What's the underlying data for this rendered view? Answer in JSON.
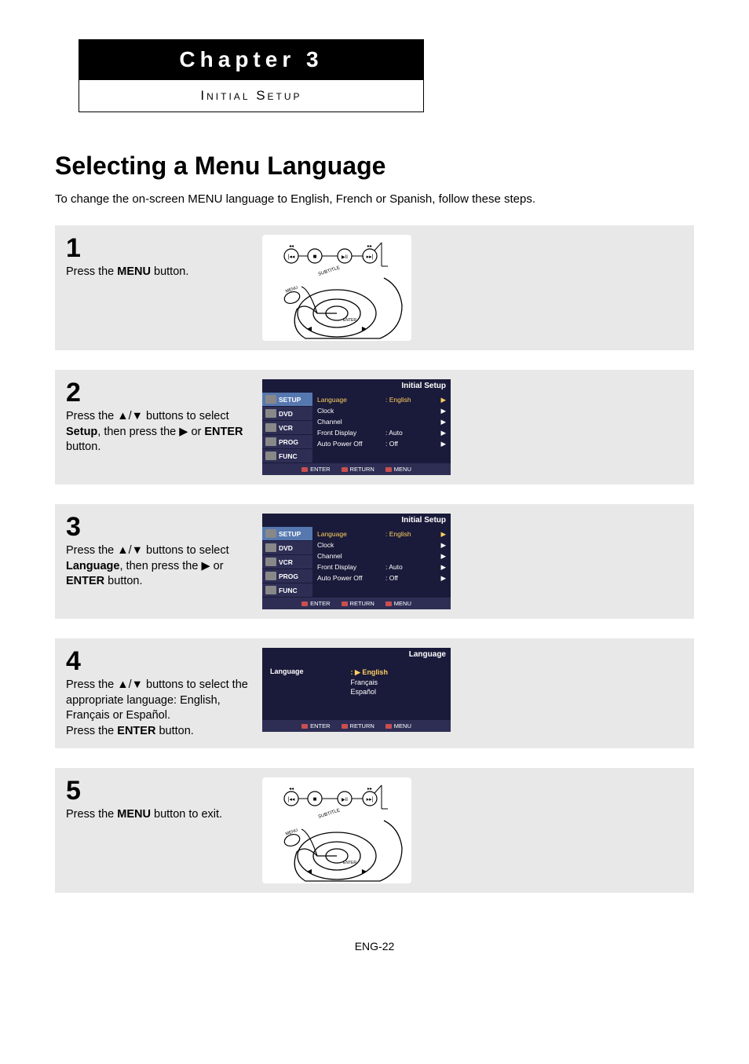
{
  "chapter": {
    "title": "Chapter 3",
    "subtitle": "Initial Setup"
  },
  "section_title": "Selecting a Menu Language",
  "intro": "To change the on-screen MENU language to English, French or Spanish, follow these steps.",
  "steps": [
    {
      "num": "1",
      "text_pre": "Press the ",
      "text_bold1": "MENU",
      "text_post": " button.",
      "image_type": "remote"
    },
    {
      "num": "2",
      "text_pre": "Press the ▲/▼ buttons to select ",
      "text_bold1": "Setup",
      "text_mid": ", then press the ▶ or ",
      "text_bold2": "ENTER",
      "text_post": " button.",
      "image_type": "osd_setup",
      "osd_highlight": "Language"
    },
    {
      "num": "3",
      "text_pre": "Press the ▲/▼ buttons to select ",
      "text_bold1": "Language",
      "text_mid": ", then press the ▶ or ",
      "text_bold2": "ENTER",
      "text_post": " button.",
      "image_type": "osd_setup",
      "osd_highlight": "Language"
    },
    {
      "num": "4",
      "text_pre": "Press the ▲/▼ buttons to select the appropriate language: English, Français or Español.\nPress the ",
      "text_bold1": "ENTER",
      "text_post": " button.",
      "image_type": "osd_lang"
    },
    {
      "num": "5",
      "text_pre": "Press the ",
      "text_bold1": "MENU",
      "text_post": " button to exit.",
      "image_type": "remote"
    }
  ],
  "osd": {
    "header_setup": "Initial Setup",
    "header_lang": "Language",
    "tabs": [
      "SETUP",
      "DVD",
      "VCR",
      "PROG",
      "FUNC"
    ],
    "rows": [
      {
        "k": "Language",
        "v": ": English",
        "a": "▶"
      },
      {
        "k": "Clock",
        "v": "",
        "a": "▶"
      },
      {
        "k": "Channel",
        "v": "",
        "a": "▶"
      },
      {
        "k": "Front Display",
        "v": ": Auto",
        "a": "▶"
      },
      {
        "k": "Auto Power Off",
        "v": ": Off",
        "a": "▶"
      }
    ],
    "lang_label": "Language",
    "lang_sel_prefix": ": ▶",
    "lang_options": [
      "English",
      "Français",
      "Español"
    ],
    "footer": [
      "ENTER",
      "RETURN",
      "MENU"
    ]
  },
  "remote": {
    "prev_label": "◂◂",
    "prev_icon": "⦮",
    "stop_icon": "■",
    "play_icon": "▶⏸",
    "next_icon": "⦯",
    "next_label": "▸▸",
    "subtitle_label": "SUBTITLE",
    "menu_label": "MENU",
    "enter_label": "ENTER",
    "nav_left": "◀",
    "nav_right": "▶"
  },
  "page_num": "ENG-22",
  "colors": {
    "block_bg": "#e8e8e8",
    "osd_bg": "#1a1a3a",
    "osd_tab_bg": "#2e2e55",
    "osd_tab_active": "#5678b0",
    "osd_highlight": "#ffd060",
    "footer_icon": "#c94f4f"
  }
}
